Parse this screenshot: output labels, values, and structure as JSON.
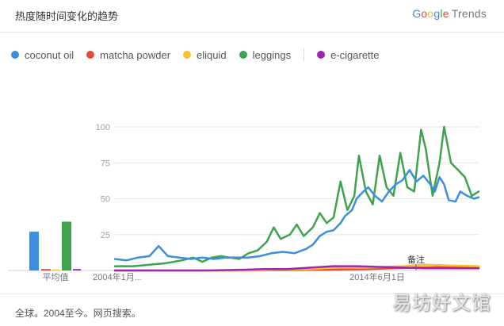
{
  "header": {
    "title": "热度随时间变化的趋势"
  },
  "brand": {
    "google": "Google",
    "trends": "Trends"
  },
  "legend": [
    {
      "label": "coconut oil",
      "color": "#3b8fdd"
    },
    {
      "label": "matcha powder",
      "color": "#e64a3c"
    },
    {
      "label": "eliquid",
      "color": "#f5c12e"
    },
    {
      "label": "leggings",
      "color": "#3fa34d"
    },
    {
      "label": "e-cigarette",
      "color": "#9c27b0"
    }
  ],
  "footer": {
    "text": "全球。2004至今。网页搜索。"
  },
  "watermark": {
    "text": "易坊好文馆"
  },
  "chart_data": {
    "type": "line",
    "y_ticks": [
      "100",
      "75",
      "50",
      "25"
    ],
    "ylim": [
      0,
      100
    ],
    "x_tick_labels": [
      "2004年1月...",
      "2014年6月1日"
    ],
    "annotation": "备注",
    "average_label": "平均值",
    "average_bars": [
      {
        "series": "coconut oil",
        "value": 27
      },
      {
        "series": "matcha powder",
        "value": 1
      },
      {
        "series": "eliquid",
        "value": 0.5
      },
      {
        "series": "leggings",
        "value": 34
      },
      {
        "series": "e-cigarette",
        "value": 1
      }
    ],
    "series": [
      {
        "name": "coconut oil",
        "color": "#3b8fdd",
        "points": [
          [
            2004.0,
            8
          ],
          [
            2004.5,
            7
          ],
          [
            2005.0,
            9
          ],
          [
            2005.5,
            10
          ],
          [
            2005.9,
            17
          ],
          [
            2006.3,
            10
          ],
          [
            2006.8,
            9
          ],
          [
            2007.3,
            8
          ],
          [
            2007.8,
            9
          ],
          [
            2008.3,
            8
          ],
          [
            2008.8,
            9
          ],
          [
            2009.3,
            9
          ],
          [
            2009.8,
            9
          ],
          [
            2010.3,
            10
          ],
          [
            2010.8,
            12
          ],
          [
            2011.3,
            13
          ],
          [
            2011.8,
            12
          ],
          [
            2012.3,
            15
          ],
          [
            2012.6,
            18
          ],
          [
            2012.9,
            24
          ],
          [
            2013.2,
            27
          ],
          [
            2013.5,
            28
          ],
          [
            2013.8,
            33
          ],
          [
            2014.0,
            38
          ],
          [
            2014.3,
            42
          ],
          [
            2014.5,
            50
          ],
          [
            2014.8,
            55
          ],
          [
            2015.0,
            58
          ],
          [
            2015.3,
            52
          ],
          [
            2015.6,
            48
          ],
          [
            2015.9,
            55
          ],
          [
            2016.2,
            60
          ],
          [
            2016.5,
            63
          ],
          [
            2016.8,
            70
          ],
          [
            2017.1,
            62
          ],
          [
            2017.4,
            66
          ],
          [
            2017.7,
            60
          ],
          [
            2017.9,
            55
          ],
          [
            2018.1,
            65
          ],
          [
            2018.3,
            60
          ],
          [
            2018.5,
            49
          ],
          [
            2018.8,
            48
          ],
          [
            2019.0,
            55
          ],
          [
            2019.3,
            52
          ],
          [
            2019.6,
            50
          ],
          [
            2019.8,
            51
          ]
        ]
      },
      {
        "name": "matcha powder",
        "color": "#e64a3c",
        "points": [
          [
            2004.0,
            0
          ],
          [
            2010.0,
            0
          ],
          [
            2013.0,
            0.5
          ],
          [
            2015.0,
            1
          ],
          [
            2017.0,
            2
          ],
          [
            2018.5,
            2.5
          ],
          [
            2019.8,
            2.5
          ]
        ]
      },
      {
        "name": "eliquid",
        "color": "#f5c12e",
        "points": [
          [
            2004.0,
            0
          ],
          [
            2010.0,
            0
          ],
          [
            2012.5,
            1
          ],
          [
            2013.5,
            2
          ],
          [
            2015.0,
            2
          ],
          [
            2016.5,
            3
          ],
          [
            2017.5,
            4
          ],
          [
            2018.5,
            3.5
          ],
          [
            2019.8,
            3
          ]
        ]
      },
      {
        "name": "leggings",
        "color": "#3fa34d",
        "points": [
          [
            2004.0,
            3
          ],
          [
            2004.8,
            3
          ],
          [
            2005.5,
            4
          ],
          [
            2006.2,
            5
          ],
          [
            2006.9,
            7
          ],
          [
            2007.4,
            9
          ],
          [
            2007.8,
            6
          ],
          [
            2008.2,
            9
          ],
          [
            2008.6,
            10
          ],
          [
            2009.0,
            9
          ],
          [
            2009.4,
            8
          ],
          [
            2009.8,
            12
          ],
          [
            2010.2,
            14
          ],
          [
            2010.6,
            20
          ],
          [
            2010.9,
            30
          ],
          [
            2011.2,
            22
          ],
          [
            2011.6,
            25
          ],
          [
            2011.9,
            32
          ],
          [
            2012.2,
            24
          ],
          [
            2012.6,
            30
          ],
          [
            2012.9,
            40
          ],
          [
            2013.2,
            33
          ],
          [
            2013.5,
            37
          ],
          [
            2013.8,
            62
          ],
          [
            2014.1,
            42
          ],
          [
            2014.4,
            52
          ],
          [
            2014.6,
            80
          ],
          [
            2014.9,
            55
          ],
          [
            2015.2,
            46
          ],
          [
            2015.5,
            80
          ],
          [
            2015.8,
            58
          ],
          [
            2016.1,
            52
          ],
          [
            2016.4,
            82
          ],
          [
            2016.7,
            58
          ],
          [
            2017.0,
            55
          ],
          [
            2017.3,
            98
          ],
          [
            2017.5,
            85
          ],
          [
            2017.8,
            52
          ],
          [
            2018.1,
            75
          ],
          [
            2018.3,
            100
          ],
          [
            2018.6,
            75
          ],
          [
            2018.9,
            70
          ],
          [
            2019.2,
            65
          ],
          [
            2019.5,
            52
          ],
          [
            2019.8,
            55
          ]
        ]
      },
      {
        "name": "e-cigarette",
        "color": "#9c27b0",
        "points": [
          [
            2004.0,
            0
          ],
          [
            2008.0,
            0
          ],
          [
            2009.5,
            0.5
          ],
          [
            2010.5,
            1
          ],
          [
            2011.5,
            1
          ],
          [
            2012.5,
            2
          ],
          [
            2013.5,
            3
          ],
          [
            2014.5,
            3
          ],
          [
            2015.5,
            2.5
          ],
          [
            2016.5,
            2
          ],
          [
            2017.5,
            1.5
          ],
          [
            2018.5,
            1.5
          ],
          [
            2019.8,
            1.5
          ]
        ]
      }
    ]
  }
}
